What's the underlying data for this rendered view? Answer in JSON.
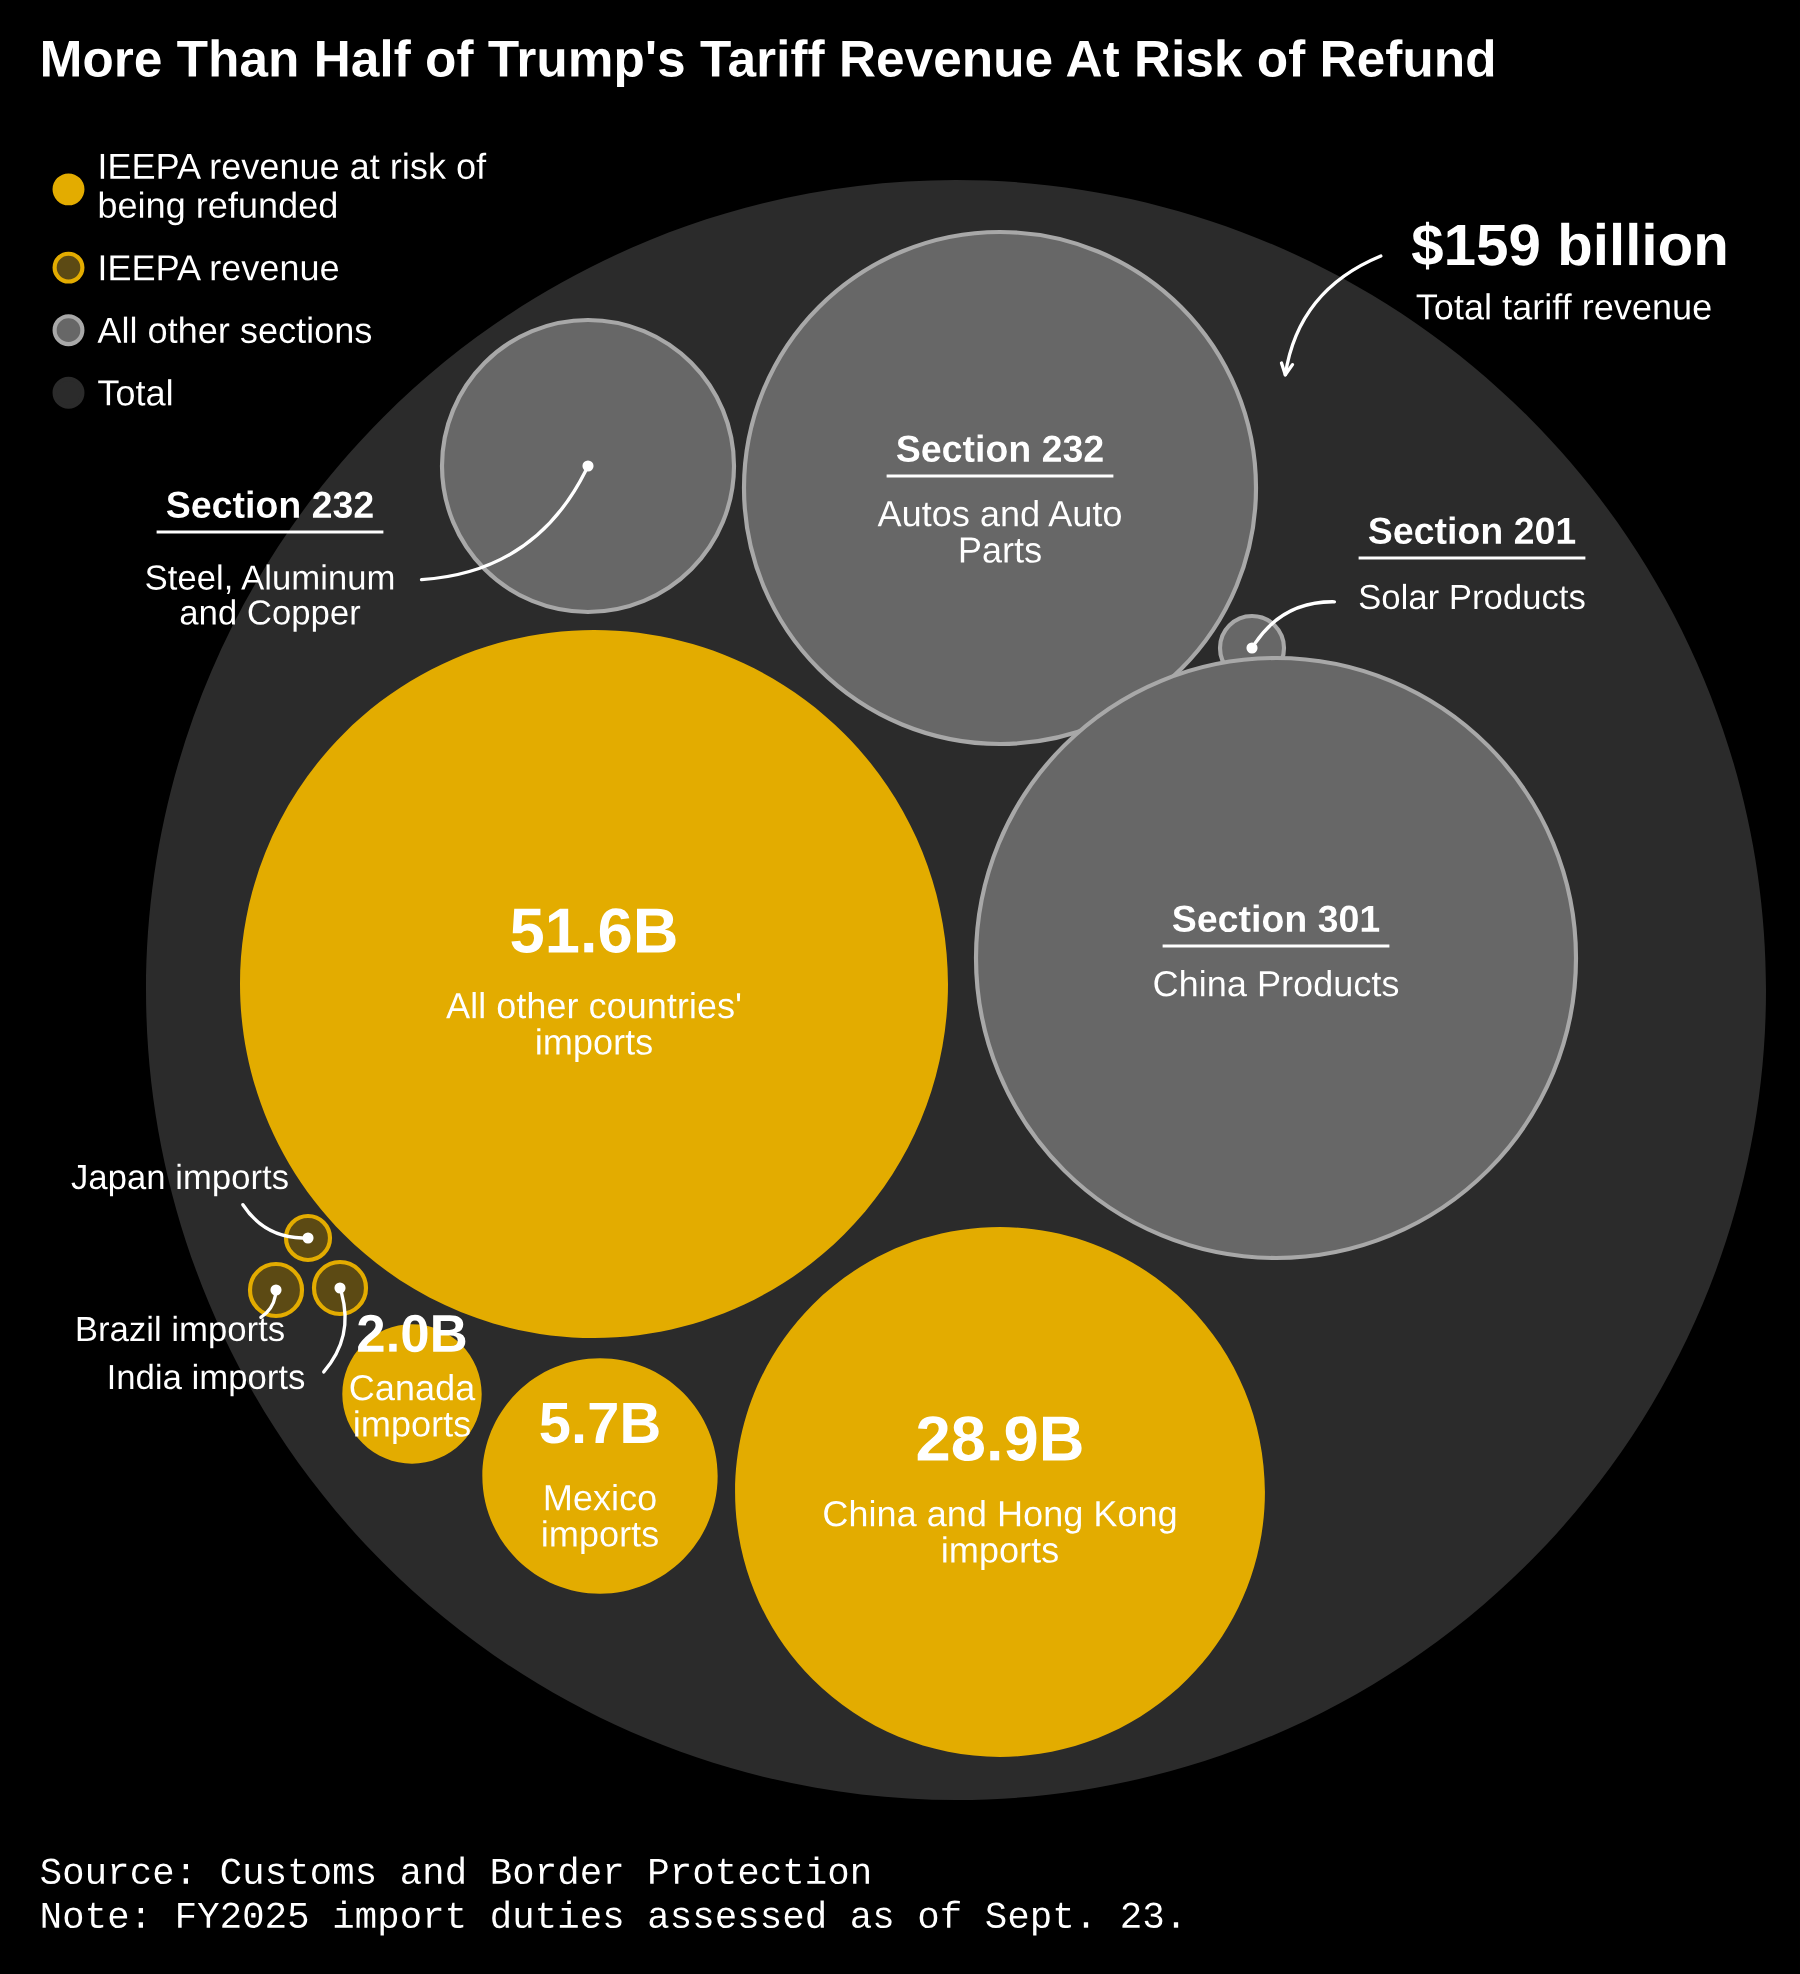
{
  "chart_data": {
    "type": "other",
    "title": "More Than Half of Trump's Tariff Revenue At Risk of Refund",
    "legend": "top left",
    "categories": [
      "All other countries' imports",
      "China and Hong Kong imports",
      "Mexico imports",
      "Canada imports",
      "Japan imports",
      "Brazil imports",
      "India imports",
      "Steel, Aluminum and Copper",
      "Autos and Auto Parts",
      "Solar Products",
      "China Products",
      "Total tariff revenue"
    ],
    "series": [
      {
        "name": "IEEPA revenue at risk of being refunded",
        "color": "#e3ac00",
        "values": [
          51.6,
          28.9,
          5.7,
          2.0,
          null,
          null,
          null,
          null,
          null,
          null,
          null,
          null
        ],
        "value_labels": [
          "51.6B",
          "28.9B",
          "5.7B",
          "2.0B",
          null,
          null,
          null,
          null,
          null,
          null,
          null,
          null
        ]
      },
      {
        "name": "IEEPA revenue",
        "color": "#5c4a14",
        "values": [
          null,
          null,
          null,
          null,
          null,
          null,
          null,
          null,
          null,
          null,
          null,
          null
        ]
      },
      {
        "name": "All other sections",
        "color": "#676767",
        "values": [
          null,
          null,
          null,
          null,
          null,
          null,
          null,
          null,
          null,
          null,
          null,
          null
        ],
        "value_labels": [
          null,
          null,
          null,
          null,
          null,
          null,
          null,
          "Section 232",
          "Section 232",
          "Section 201",
          "Section 301",
          null
        ]
      },
      {
        "name": "Total",
        "color": "#2b2b2b",
        "values": [
          null,
          null,
          null,
          null,
          null,
          null,
          null,
          null,
          null,
          null,
          null,
          null
        ],
        "value_labels": [
          null,
          null,
          null,
          null,
          null,
          null,
          null,
          null,
          null,
          null,
          null,
          "$159 billion"
        ]
      }
    ],
    "annotations": [
      "Source: Customs and Border Protection",
      "Note: FY2025 import duties assessed as of Sept. 23."
    ]
  }
}
